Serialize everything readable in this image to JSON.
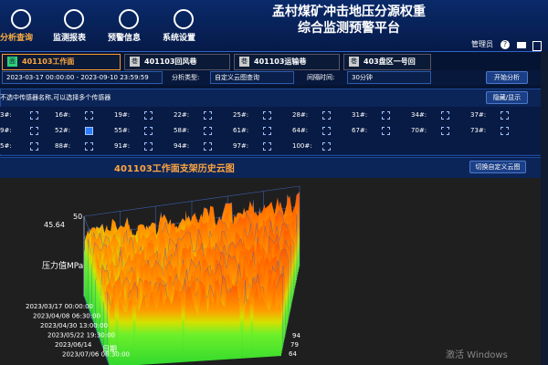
{
  "header": {
    "title": "孟村煤矿冲击地压分源权重综合监测预警平台",
    "nav": [
      "分析查询",
      "监测报表",
      "预警信息",
      "系统设置"
    ],
    "user": "管理员"
  },
  "tabs": [
    {
      "icon": "面",
      "label": "401103工作面"
    },
    {
      "icon": "巷",
      "label": "401103回风巷"
    },
    {
      "icon": "巷",
      "label": "401103运输巷"
    },
    {
      "icon": "巷",
      "label": "403盘区一号回"
    }
  ],
  "filters": {
    "date_range": "2023-03-17 00:00:00 - 2023-09-10 23:59:59",
    "type_label": "分析类型:",
    "type_value": "自定义云图查询",
    "interval_label": "间隔时间:",
    "interval_value": "30分钟",
    "start_button": "开始分析"
  },
  "sensor_panel": {
    "hint": "不选中传感器名称,可以选择多个传感器",
    "toggle_button": "隐藏/显示",
    "sensors": [
      {
        "label": "3#:",
        "checked": false
      },
      {
        "label": "16#:",
        "checked": false
      },
      {
        "label": "19#:",
        "checked": false
      },
      {
        "label": "22#:",
        "checked": false
      },
      {
        "label": "25#:",
        "checked": false
      },
      {
        "label": "28#:",
        "checked": false
      },
      {
        "label": "31#:",
        "checked": false
      },
      {
        "label": "34#:",
        "checked": false
      },
      {
        "label": "37#:",
        "checked": false
      },
      {
        "label": "9#:",
        "checked": false
      },
      {
        "label": "52#:",
        "checked": true
      },
      {
        "label": "55#:",
        "checked": false
      },
      {
        "label": "58#:",
        "checked": false
      },
      {
        "label": "61#:",
        "checked": false
      },
      {
        "label": "64#:",
        "checked": false
      },
      {
        "label": "67#:",
        "checked": false
      },
      {
        "label": "70#:",
        "checked": false
      },
      {
        "label": "73#:",
        "checked": false
      },
      {
        "label": "5#:",
        "checked": false
      },
      {
        "label": "88#:",
        "checked": false
      },
      {
        "label": "91#:",
        "checked": false
      },
      {
        "label": "94#:",
        "checked": false
      },
      {
        "label": "97#:",
        "checked": false
      },
      {
        "label": "100#:",
        "checked": false
      }
    ]
  },
  "chart_panel": {
    "title": "401103工作面支架历史云图",
    "switch_button": "切换自定义云图",
    "z_labels": [
      "50",
      "45.64"
    ],
    "z_axis_title": "压力值MPa",
    "time_labels": [
      "2023/03/17 00:00:00",
      "2023/04/08 06:30:00",
      "2023/04/30 13:00:00",
      "2023/05/22 19:30:00",
      "2023/06/14",
      "2023/07/06 08:30:00"
    ],
    "time_axis_title": "日期",
    "support_labels": [
      "94",
      "79",
      "64"
    ]
  },
  "watermark": {
    "line1": "激活 Windows"
  }
}
